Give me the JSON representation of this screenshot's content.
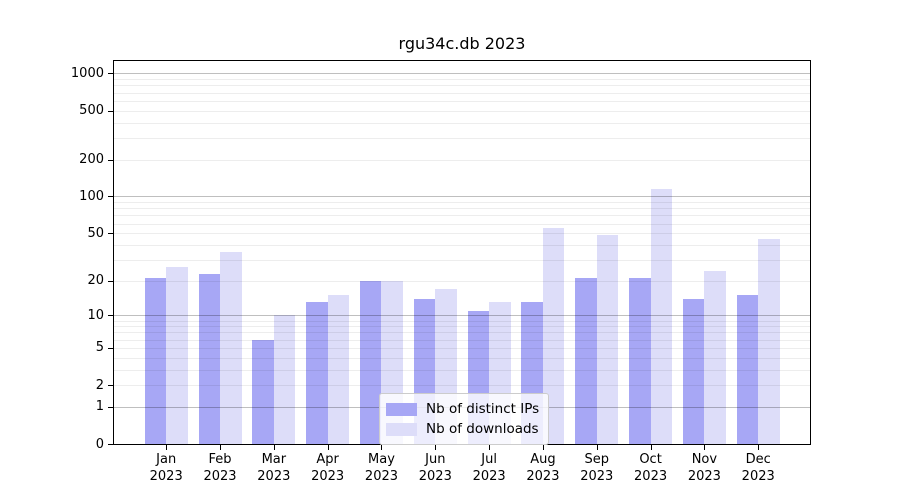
{
  "title": "rgu34c.db 2023",
  "chart_data": {
    "type": "bar",
    "title": "rgu34c.db 2023",
    "categories": [
      "Jan 2023",
      "Feb 2023",
      "Mar 2023",
      "Apr 2023",
      "May 2023",
      "Jun 2023",
      "Jul 2023",
      "Aug 2023",
      "Sep 2023",
      "Oct 2023",
      "Nov 2023",
      "Dec 2023"
    ],
    "series": [
      {
        "name": "Nb of distinct IPs",
        "color": "#a7a7f5",
        "values": [
          21,
          23,
          6,
          13,
          20,
          14,
          11,
          13,
          21,
          21,
          14,
          15
        ]
      },
      {
        "name": "Nb of downloads",
        "color": "#ddddf9",
        "values": [
          26,
          35,
          10,
          15,
          20,
          17,
          13,
          55,
          48,
          116,
          24,
          45
        ]
      }
    ],
    "xlabel": "",
    "ylabel": "",
    "yscale": "log1p",
    "ylim": [
      0,
      1250
    ],
    "y_tick_labels": [
      1000,
      500,
      200,
      100,
      50,
      20,
      10,
      5,
      2,
      1,
      0
    ],
    "gridlines": {
      "major": [
        1,
        10,
        100,
        1000
      ],
      "minor": [
        2,
        3,
        4,
        5,
        6,
        7,
        8,
        9,
        20,
        30,
        40,
        50,
        60,
        70,
        80,
        90,
        200,
        300,
        400,
        500,
        600,
        700,
        800,
        900
      ]
    },
    "grid": true,
    "legend_position": "lower-center"
  },
  "legend": {
    "item1": "Nb of distinct IPs",
    "item2": "Nb of downloads"
  }
}
